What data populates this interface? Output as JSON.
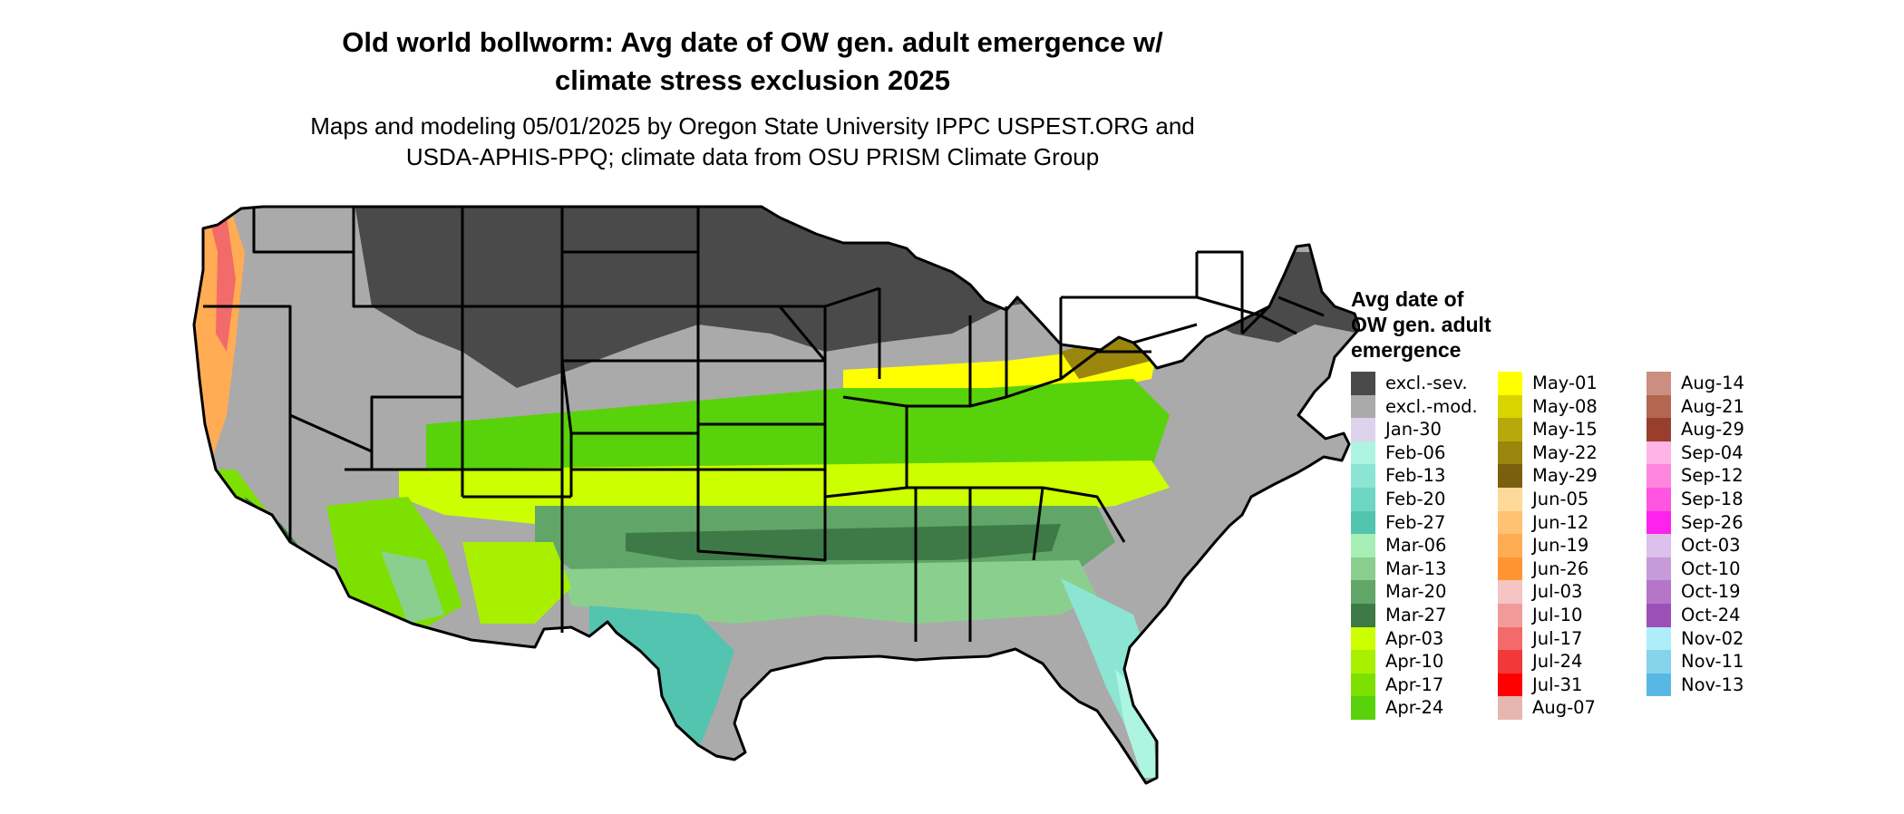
{
  "title_line1": "Old world bollworm: Avg date of OW gen. adult emergence w/",
  "title_line2": "climate stress exclusion 2025",
  "subtitle_line1": "Maps and modeling 05/01/2025 by Oregon State University IPPC USPEST.ORG and",
  "subtitle_line2": "USDA-APHIS-PPQ; climate data from OSU PRISM Climate Group",
  "legend": {
    "title_line1": "Avg date of",
    "title_line2": "OW gen. adult",
    "title_line3": "emergence",
    "columns": [
      [
        {
          "label": "excl.-sev.",
          "color": "#4a4a4a"
        },
        {
          "label": "excl.-mod.",
          "color": "#aaaaaa"
        },
        {
          "label": "Jan-30",
          "color": "#ddd3ec"
        },
        {
          "label": "Feb-06",
          "color": "#adf5e0"
        },
        {
          "label": "Feb-13",
          "color": "#8be5d2"
        },
        {
          "label": "Feb-20",
          "color": "#6ed6c4"
        },
        {
          "label": "Feb-27",
          "color": "#52c4b0"
        },
        {
          "label": "Mar-06",
          "color": "#a6eeb4"
        },
        {
          "label": "Mar-13",
          "color": "#8bcf8e"
        },
        {
          "label": "Mar-20",
          "color": "#62a569"
        },
        {
          "label": "Mar-27",
          "color": "#3d7a47"
        },
        {
          "label": "Apr-03",
          "color": "#ccff00"
        },
        {
          "label": "Apr-10",
          "color": "#a8f000"
        },
        {
          "label": "Apr-17",
          "color": "#7ee000"
        },
        {
          "label": "Apr-24",
          "color": "#58d20a"
        }
      ],
      [
        {
          "label": "May-01",
          "color": "#ffff00"
        },
        {
          "label": "May-08",
          "color": "#d8d400"
        },
        {
          "label": "May-15",
          "color": "#b7a90b"
        },
        {
          "label": "May-22",
          "color": "#9a860d"
        },
        {
          "label": "May-29",
          "color": "#7a5f0e"
        },
        {
          "label": "Jun-05",
          "color": "#ffd999"
        },
        {
          "label": "Jun-12",
          "color": "#ffc172"
        },
        {
          "label": "Jun-19",
          "color": "#ffac55"
        },
        {
          "label": "Jun-26",
          "color": "#ff9530"
        },
        {
          "label": "Jul-03",
          "color": "#f5c4c4"
        },
        {
          "label": "Jul-10",
          "color": "#f29a9a"
        },
        {
          "label": "Jul-17",
          "color": "#f26a6a"
        },
        {
          "label": "Jul-24",
          "color": "#f23838"
        },
        {
          "label": "Jul-31",
          "color": "#ff0000"
        },
        {
          "label": "Aug-07",
          "color": "#e6b7b0"
        }
      ],
      [
        {
          "label": "Aug-14",
          "color": "#cc8e80"
        },
        {
          "label": "Aug-21",
          "color": "#b36650"
        },
        {
          "label": "Aug-29",
          "color": "#993e2c"
        },
        {
          "label": "Sep-04",
          "color": "#ffb3e6"
        },
        {
          "label": "Sep-12",
          "color": "#ff85df"
        },
        {
          "label": "Sep-18",
          "color": "#ff55e0"
        },
        {
          "label": "Sep-26",
          "color": "#ff22ee"
        },
        {
          "label": "Oct-03",
          "color": "#dcc1ea"
        },
        {
          "label": "Oct-10",
          "color": "#c79ad9"
        },
        {
          "label": "Oct-19",
          "color": "#b575c9"
        },
        {
          "label": "Oct-24",
          "color": "#9d4fb8"
        },
        {
          "label": "Nov-02",
          "color": "#aeeefa"
        },
        {
          "label": "Nov-11",
          "color": "#86d3ec"
        },
        {
          "label": "Nov-13",
          "color": "#57b9e3"
        }
      ]
    ]
  }
}
